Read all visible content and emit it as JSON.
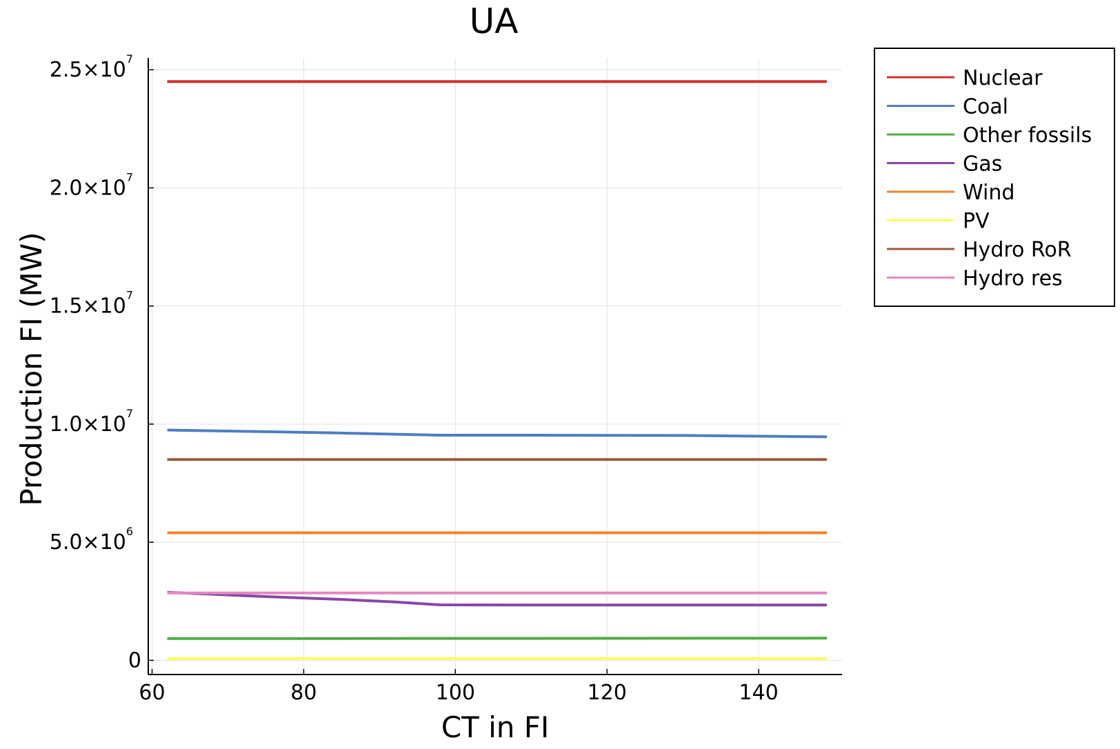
{
  "chart_data": {
    "type": "line",
    "title": "UA",
    "xlabel": "CT in FI",
    "ylabel": "Production FI (MW)",
    "xlim": [
      59.5,
      151
    ],
    "ylim": [
      -600000,
      25500000
    ],
    "xticks": [
      {
        "value": 60,
        "label": "60"
      },
      {
        "value": 80,
        "label": "80"
      },
      {
        "value": 100,
        "label": "100"
      },
      {
        "value": 120,
        "label": "120"
      },
      {
        "value": 140,
        "label": "140"
      }
    ],
    "yticks": [
      {
        "value": 0,
        "mantissa": "0",
        "exponent": ""
      },
      {
        "value": 5000000,
        "mantissa": "5.0×10",
        "exponent": "6"
      },
      {
        "value": 10000000,
        "mantissa": "1.0×10",
        "exponent": "7"
      },
      {
        "value": 15000000,
        "mantissa": "1.5×10",
        "exponent": "7"
      },
      {
        "value": 20000000,
        "mantissa": "2.0×10",
        "exponent": "7"
      },
      {
        "value": 25000000,
        "mantissa": "2.5×10",
        "exponent": "7"
      }
    ],
    "grid": true,
    "legend_position": "outside-top-right",
    "series": [
      {
        "name": "Nuclear",
        "color": "#d62e2e",
        "x": [
          62,
          149
        ],
        "y": [
          24500000,
          24500000
        ]
      },
      {
        "name": "Coal",
        "color": "#4f7dc1",
        "x": [
          62,
          75,
          85,
          98,
          110,
          130,
          149
        ],
        "y": [
          9750000,
          9680000,
          9620000,
          9530000,
          9530000,
          9520000,
          9460000
        ]
      },
      {
        "name": "Other fossils",
        "color": "#4fac43",
        "x": [
          62,
          149
        ],
        "y": [
          920000,
          940000
        ]
      },
      {
        "name": "Gas",
        "color": "#8a46a6",
        "x": [
          62,
          75,
          85,
          92,
          98,
          110,
          149
        ],
        "y": [
          2880000,
          2700000,
          2580000,
          2470000,
          2350000,
          2340000,
          2340000
        ]
      },
      {
        "name": "Wind",
        "color": "#f08228",
        "x": [
          62,
          149
        ],
        "y": [
          5400000,
          5400000
        ]
      },
      {
        "name": "PV",
        "color": "#fdfd5a",
        "x": [
          62,
          149
        ],
        "y": [
          80000,
          80000
        ]
      },
      {
        "name": "Hydro RoR",
        "color": "#9b5b3b",
        "x": [
          62,
          149
        ],
        "y": [
          8500000,
          8500000
        ]
      },
      {
        "name": "Hydro res",
        "color": "#e586c4",
        "x": [
          62,
          149
        ],
        "y": [
          2850000,
          2850000
        ]
      }
    ]
  }
}
